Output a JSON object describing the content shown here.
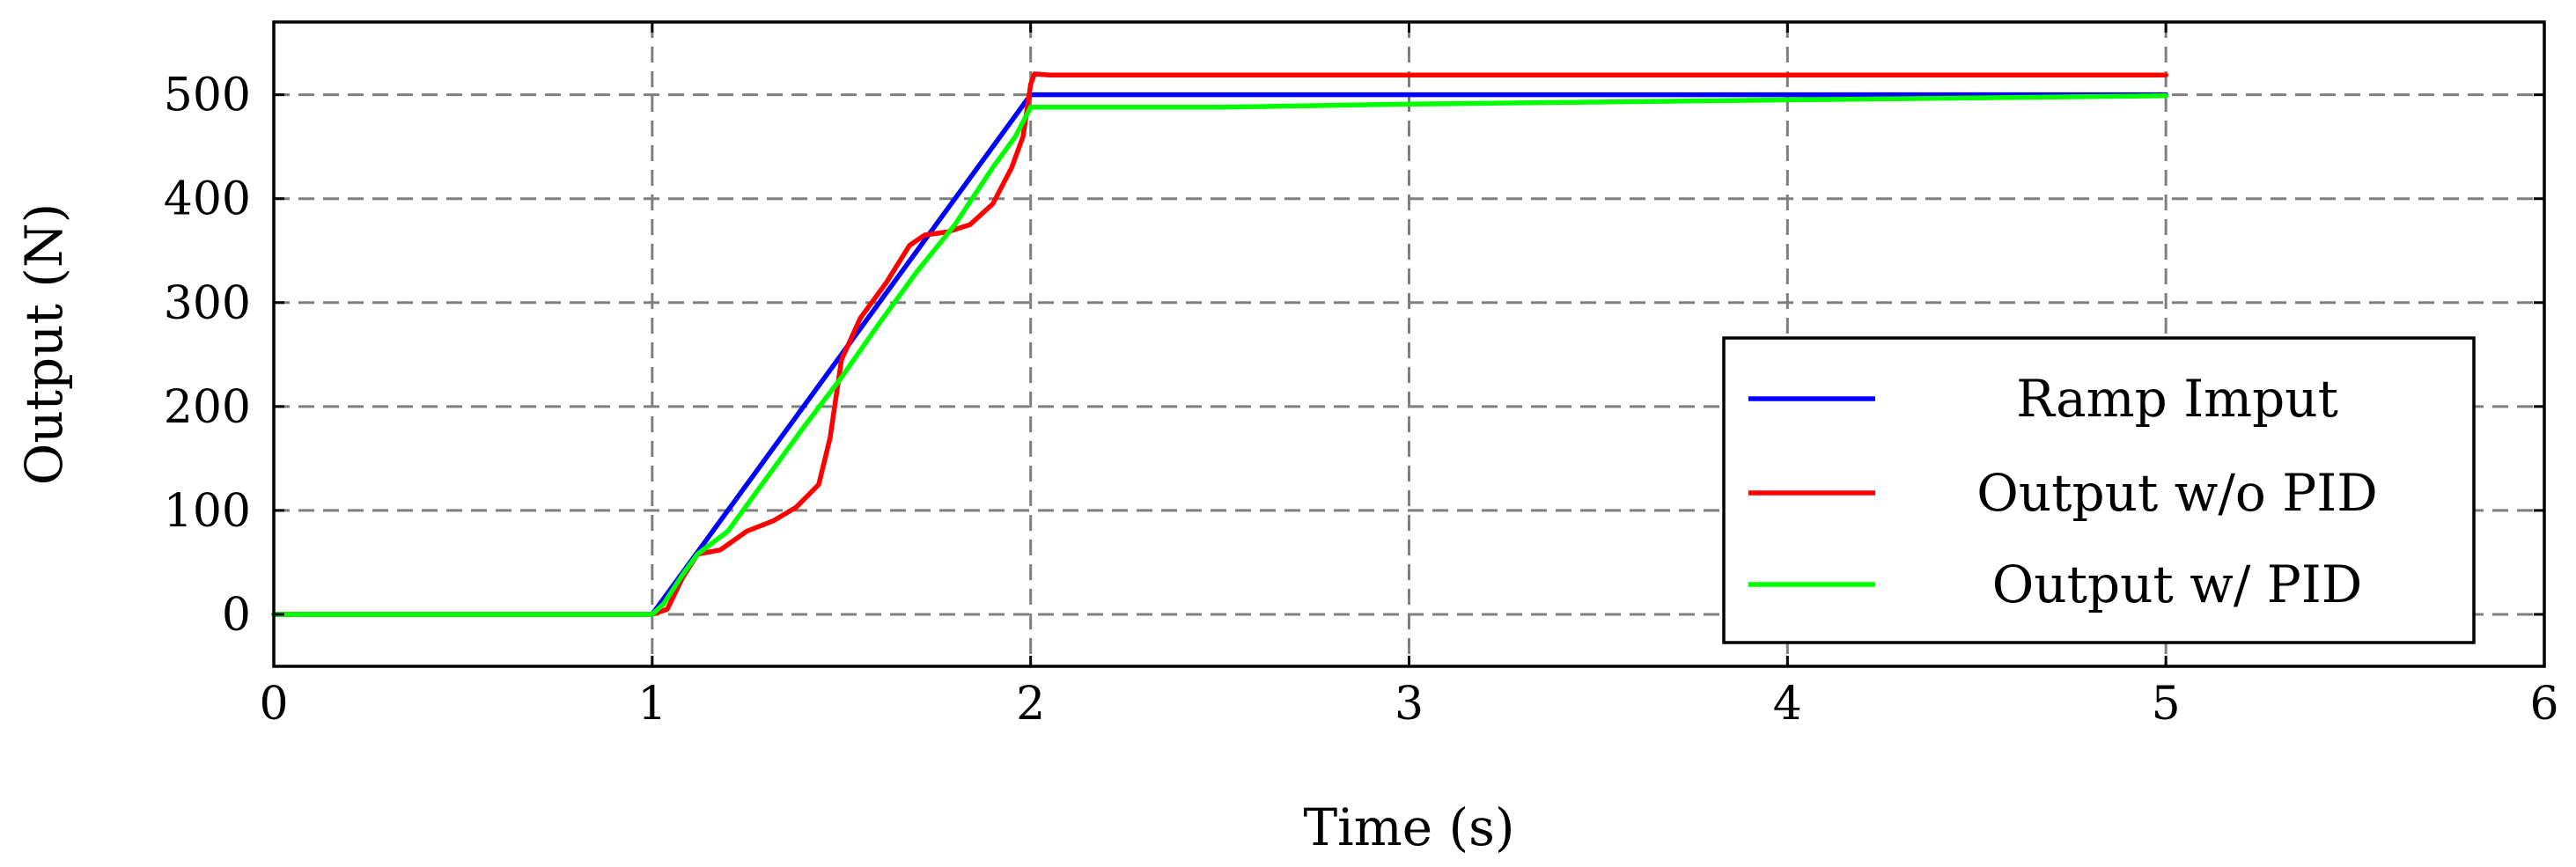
{
  "chart_data": {
    "type": "line",
    "xlabel": "Time (s)",
    "ylabel": "Output (N)",
    "xlim": [
      0,
      6
    ],
    "ylim": [
      -50,
      570
    ],
    "xticks": [
      0,
      1,
      2,
      3,
      4,
      5,
      6
    ],
    "yticks": [
      0,
      100,
      200,
      300,
      400,
      500
    ],
    "grid": true,
    "legend_position": "bottom-right",
    "series": [
      {
        "name": "Ramp Imput",
        "color": "#0000ff",
        "x": [
          0,
          1,
          2,
          5
        ],
        "y": [
          0,
          0,
          500,
          500
        ]
      },
      {
        "name": "Output w/o PID",
        "color": "#ff0000",
        "x": [
          0,
          1.0,
          1.04,
          1.08,
          1.12,
          1.18,
          1.25,
          1.32,
          1.38,
          1.44,
          1.47,
          1.5,
          1.55,
          1.62,
          1.68,
          1.72,
          1.78,
          1.84,
          1.9,
          1.95,
          1.98,
          2.0,
          2.01,
          2.05,
          2.5,
          5.0
        ],
        "y": [
          0,
          0,
          5,
          35,
          58,
          62,
          80,
          90,
          103,
          125,
          170,
          245,
          285,
          320,
          355,
          365,
          368,
          375,
          395,
          430,
          460,
          510,
          520,
          519,
          519,
          519
        ]
      },
      {
        "name": "Output w/ PID",
        "color": "#00ff00",
        "x": [
          0,
          1.0,
          1.03,
          1.08,
          1.12,
          1.2,
          1.3,
          1.4,
          1.5,
          1.6,
          1.7,
          1.8,
          1.9,
          1.96,
          2.0,
          2.02,
          2.5,
          3.0,
          4.0,
          5.0
        ],
        "y": [
          0,
          0,
          10,
          38,
          58,
          80,
          130,
          180,
          228,
          280,
          330,
          375,
          430,
          460,
          488,
          488,
          488,
          491,
          495,
          499
        ]
      }
    ]
  }
}
